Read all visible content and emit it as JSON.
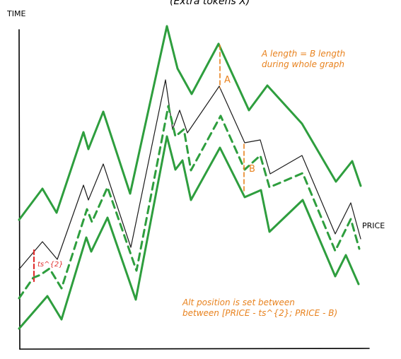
{
  "title": "(Extra tokens X)",
  "y_axis_label": "TIME",
  "price_label": "PRICE",
  "note_ab_line1": "A length = B length",
  "note_ab_line2": "during whole graph",
  "marker_a": "A",
  "marker_b": "B",
  "marker_ts": "ts^{2}",
  "note_alt_line1": "Alt position is set between",
  "note_alt_line2": "between [PRICE - ts^{2}; PRICE - B)",
  "colors": {
    "axis": "#000000",
    "price": "#1a1a1a",
    "band": "#2e9e3e",
    "annotation": "#e8821e",
    "ts_marker": "#e03131"
  }
}
